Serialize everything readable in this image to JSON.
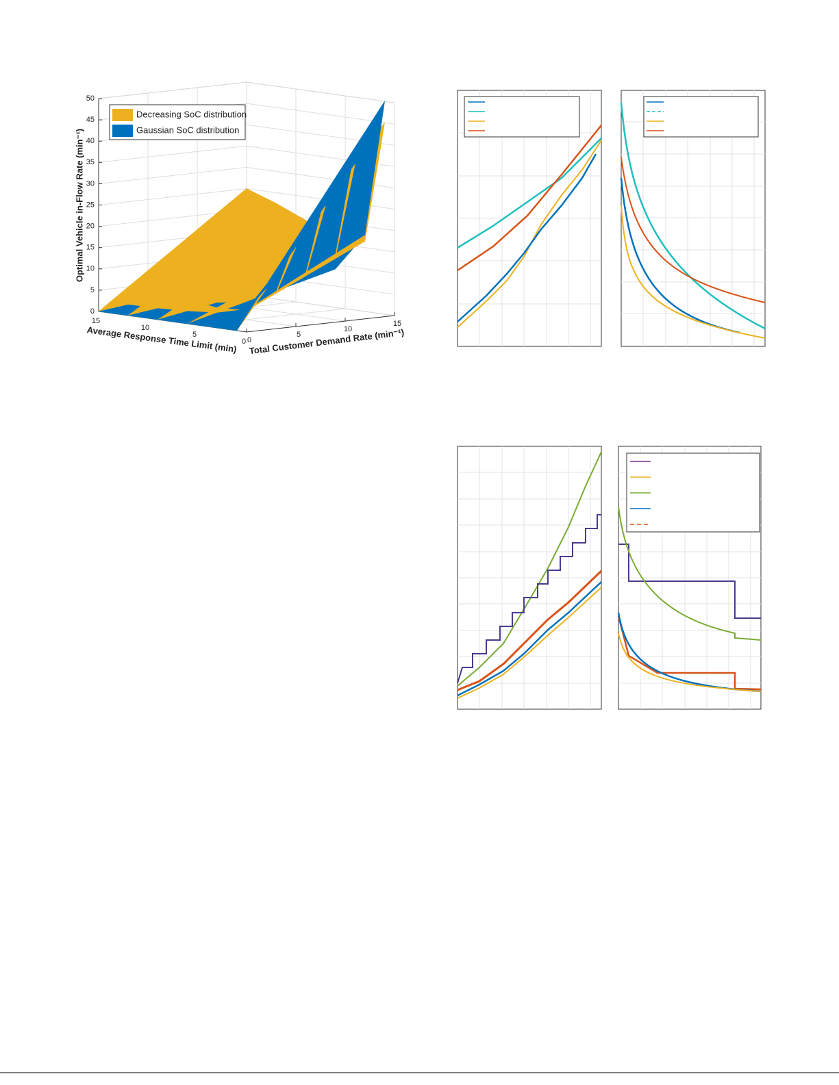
{
  "chart_data": {
    "type": "surface",
    "xlabel": "Average Response Time Limit (min)",
    "ylabel": "Total Customer Demand Rate (min⁻¹)",
    "zlabel": "Optimal Vehicle in-Flow Rate  (min⁻¹)",
    "x": [
      15,
      12,
      9,
      6,
      3,
      1
    ],
    "y": [
      0,
      3,
      6,
      9,
      12,
      15
    ],
    "xlim": [
      0,
      15
    ],
    "xticks": [
      15,
      10,
      5,
      0
    ],
    "ylim": [
      0,
      15
    ],
    "yticks": [
      0,
      5,
      10,
      15
    ],
    "zlim": [
      0,
      50
    ],
    "zticks": [
      0,
      5,
      10,
      15,
      20,
      25,
      30,
      35,
      40,
      45,
      50
    ],
    "grid": true,
    "legend": "upper left",
    "series": [
      {
        "name": "Decreasing SoC distribution",
        "color": "#EDB120",
        "values": [
          [
            0,
            5,
            10,
            15,
            20,
            25
          ],
          [
            0,
            4.5,
            9,
            13.5,
            18,
            22.5
          ],
          [
            0,
            3.9,
            7.8,
            11.7,
            15.6,
            19.5
          ],
          [
            0,
            3,
            6,
            9,
            12,
            15
          ],
          [
            0,
            3.3,
            6.6,
            9.9,
            13.2,
            16.5
          ],
          [
            0,
            9,
            18,
            27,
            36,
            45
          ]
        ]
      },
      {
        "name": "Gaussian SoC distribution",
        "color": "#0072BD",
        "values": [
          [
            0,
            0.8,
            1.5,
            2.3,
            3,
            3.8
          ],
          [
            0,
            0.9,
            1.8,
            2.7,
            3.6,
            4.5
          ],
          [
            0,
            1.2,
            2.4,
            3.6,
            4.8,
            6
          ],
          [
            0,
            1.8,
            3.6,
            5.4,
            7.2,
            9
          ],
          [
            0,
            3.6,
            7.2,
            10.8,
            14.4,
            18
          ],
          [
            0,
            10,
            20,
            30,
            40,
            50
          ]
        ]
      }
    ]
  }
}
